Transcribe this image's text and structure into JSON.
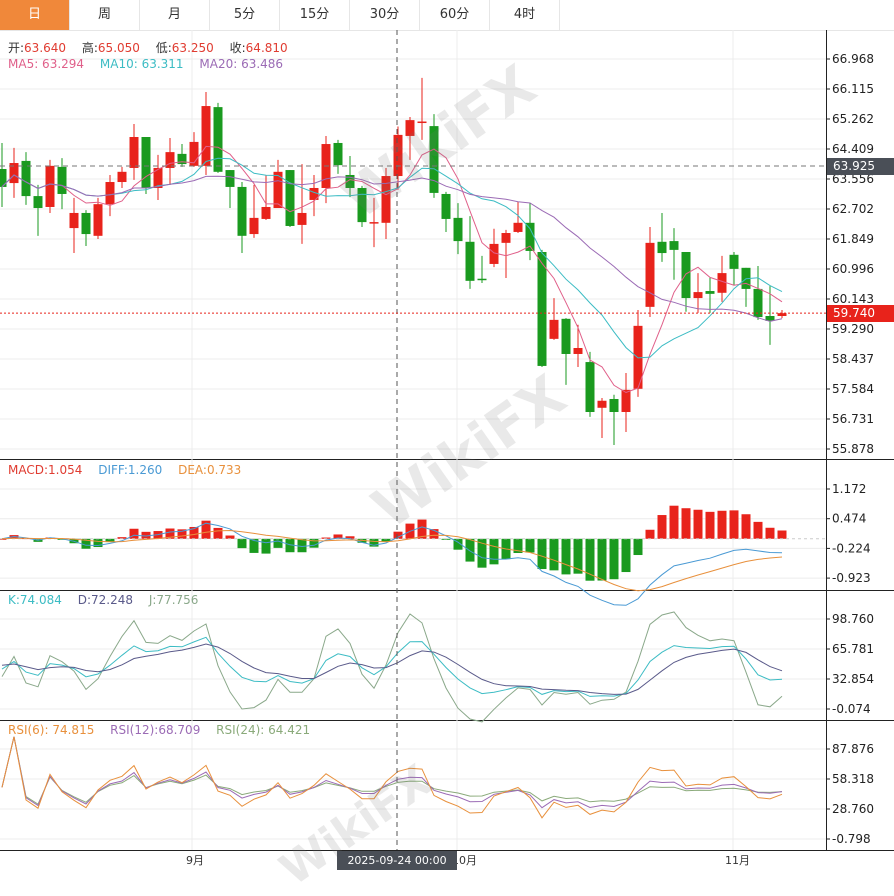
{
  "tabs": [
    {
      "label": "日",
      "active": true
    },
    {
      "label": "周"
    },
    {
      "label": "月"
    },
    {
      "label": "5分"
    },
    {
      "label": "15分"
    },
    {
      "label": "30分"
    },
    {
      "label": "60分"
    },
    {
      "label": "4时"
    }
  ],
  "ohlc_legend": {
    "open_label": "开:",
    "open": "63.640",
    "high_label": "高:",
    "high": "65.050",
    "low_label": "低:",
    "low": "63.250",
    "close_label": "收:",
    "close": "64.810"
  },
  "ma_legend": {
    "ma5": "MA5: 63.294",
    "ma10": "MA10: 63.311",
    "ma20": "MA20: 63.486"
  },
  "macd_legend": {
    "macd": "MACD:1.054",
    "diff": "DIFF:1.260",
    "dea": "DEA:0.733"
  },
  "kdj_legend": {
    "k": "K:74.084",
    "d": "D:72.248",
    "j": "J:77.756"
  },
  "rsi_legend": {
    "rsi6": "RSI(6): 74.815",
    "rsi12": "RSI(12):68.709",
    "rsi24": "RSI(24): 64.421"
  },
  "price_axis": [
    "66.968",
    "66.115",
    "65.262",
    "64.409",
    "63.556",
    "62.702",
    "61.849",
    "60.996",
    "60.143",
    "59.290",
    "58.437",
    "57.584",
    "56.731",
    "55.878"
  ],
  "macd_axis": [
    "1.172",
    "0.474",
    "-0.224",
    "-0.923"
  ],
  "kdj_axis": [
    "98.760",
    "65.781",
    "32.854",
    "-0.074"
  ],
  "rsi_axis": [
    "87.876",
    "58.318",
    "28.760",
    "-0.798"
  ],
  "crosshair_price": "63.925",
  "last_price": "59.740",
  "crosshair_date": "2025-09-24 00:00",
  "x_labels": [
    "9月",
    "10月",
    "11月"
  ],
  "watermark": "WikiFX",
  "colors": {
    "up": "#e8231b",
    "down": "#1a9a1f",
    "ma5": "#e0608a",
    "ma10": "#3cbcc4",
    "ma20": "#9b6bb5",
    "diff": "#4a9ad4",
    "dea": "#e8903c",
    "k": "#3cbcc4",
    "d": "#5a5a8a",
    "j": "#8aa88a",
    "rsi6": "#e8903c",
    "rsi12": "#9b6bb5",
    "rsi24": "#8aaa7a",
    "accent": "#f0883a"
  },
  "candles_ohlc": [
    [
      63.84,
      64.58,
      62.76,
      63.33
    ],
    [
      63.44,
      64.44,
      63.02,
      64.01
    ],
    [
      64.07,
      64.32,
      62.82,
      63.07
    ],
    [
      63.07,
      63.39,
      61.94,
      62.73
    ],
    [
      62.76,
      64.1,
      62.59,
      63.93
    ],
    [
      63.9,
      64.15,
      62.7,
      63.13
    ],
    [
      62.16,
      63.02,
      61.45,
      62.59
    ],
    [
      62.59,
      62.67,
      61.65,
      61.99
    ],
    [
      61.94,
      63.02,
      61.85,
      62.84
    ],
    [
      62.84,
      63.67,
      62.5,
      63.47
    ],
    [
      63.47,
      63.9,
      63.3,
      63.76
    ],
    [
      63.87,
      65.12,
      63.53,
      64.75
    ],
    [
      64.75,
      64.75,
      63.13,
      63.3
    ],
    [
      63.3,
      64.24,
      62.96,
      63.87
    ],
    [
      63.87,
      64.72,
      63.39,
      64.32
    ],
    [
      64.27,
      64.55,
      63.9,
      63.98
    ],
    [
      63.93,
      64.89,
      63.9,
      64.61
    ],
    [
      63.93,
      66.03,
      63.67,
      65.63
    ],
    [
      65.6,
      65.72,
      63.73,
      63.76
    ],
    [
      63.81,
      63.81,
      62.73,
      63.33
    ],
    [
      63.33,
      63.47,
      61.45,
      61.94
    ],
    [
      61.99,
      63.39,
      61.88,
      62.45
    ],
    [
      62.42,
      63.67,
      62.39,
      62.76
    ],
    [
      62.73,
      64.1,
      62.73,
      63.76
    ],
    [
      63.81,
      63.81,
      62.19,
      62.22
    ],
    [
      62.25,
      63.98,
      61.71,
      62.59
    ],
    [
      62.96,
      63.67,
      62.5,
      63.3
    ],
    [
      63.3,
      64.78,
      62.87,
      64.55
    ],
    [
      64.58,
      64.67,
      63.7,
      63.95
    ],
    [
      63.67,
      64.21,
      63.04,
      63.3
    ],
    [
      63.3,
      63.36,
      62.19,
      62.33
    ],
    [
      62.31,
      63.02,
      61.62,
      62.33
    ],
    [
      62.31,
      63.87,
      61.85,
      63.64
    ],
    [
      63.64,
      65.05,
      63.25,
      64.81
    ],
    [
      64.78,
      65.32,
      64.1,
      65.23
    ],
    [
      65.18,
      66.43,
      64.67,
      65.19
    ],
    [
      65.06,
      65.4,
      63.02,
      63.16
    ],
    [
      63.13,
      63.19,
      62.05,
      62.42
    ],
    [
      62.45,
      62.87,
      61.42,
      61.79
    ],
    [
      61.77,
      62.5,
      60.43,
      60.66
    ],
    [
      60.72,
      61.37,
      60.6,
      60.69
    ],
    [
      61.14,
      62.14,
      61.05,
      61.71
    ],
    [
      61.74,
      62.11,
      60.74,
      62.02
    ],
    [
      62.05,
      62.9,
      62.02,
      62.31
    ],
    [
      62.31,
      62.87,
      61.25,
      61.51
    ],
    [
      61.48,
      61.54,
      58.21,
      58.24
    ],
    [
      59.01,
      60.17,
      58.98,
      59.55
    ],
    [
      59.58,
      59.6,
      57.7,
      58.58
    ],
    [
      58.58,
      59.41,
      58.21,
      58.75
    ],
    [
      58.35,
      58.64,
      56.79,
      56.93
    ],
    [
      57.05,
      57.33,
      56.19,
      57.25
    ],
    [
      57.3,
      57.42,
      55.99,
      56.93
    ],
    [
      56.93,
      58.04,
      56.36,
      57.56
    ],
    [
      57.59,
      59.83,
      57.36,
      59.38
    ],
    [
      59.92,
      62.19,
      59.63,
      61.74
    ],
    [
      61.77,
      62.59,
      61.2,
      61.45
    ],
    [
      61.79,
      62.16,
      60.69,
      61.54
    ],
    [
      61.48,
      61.48,
      59.78,
      60.17
    ],
    [
      60.17,
      60.88,
      59.75,
      60.34
    ],
    [
      60.37,
      60.77,
      59.75,
      60.29
    ],
    [
      60.32,
      61.37,
      60.06,
      60.88
    ],
    [
      61.4,
      61.48,
      60.54,
      61.0
    ],
    [
      61.03,
      61.03,
      59.92,
      60.43
    ],
    [
      60.43,
      61.08,
      59.55,
      59.63
    ],
    [
      59.66,
      60.51,
      58.84,
      59.52
    ],
    [
      59.66,
      59.83,
      59.6,
      59.74
    ]
  ]
}
